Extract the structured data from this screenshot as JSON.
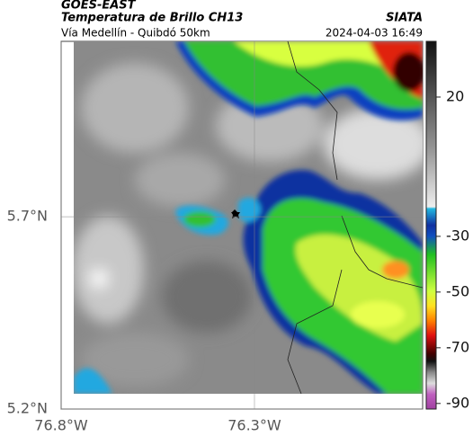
{
  "header": {
    "satellite": "GOES-EAST",
    "product": "Temperatura de Brillo CH13",
    "source": "SIATA",
    "route": "Vía Medellín - Quibdó 50km",
    "timestamp": "2024-04-03 16:49"
  },
  "map": {
    "xlim": [
      -76.8,
      -75.865
    ],
    "ylim": [
      5.2,
      6.156
    ],
    "xticks": [
      {
        "value": -76.8,
        "label": "76.8°W"
      },
      {
        "value": -76.3,
        "label": "76.3°W"
      }
    ],
    "yticks": [
      {
        "value": 5.2,
        "label": "5.2°N"
      },
      {
        "value": 5.7,
        "label": "5.7°N"
      }
    ],
    "grid": true
  },
  "colorbar": {
    "lim": [
      -92,
      40
    ],
    "ticks": [
      20,
      -30,
      -50,
      -70,
      -90
    ]
  }
}
